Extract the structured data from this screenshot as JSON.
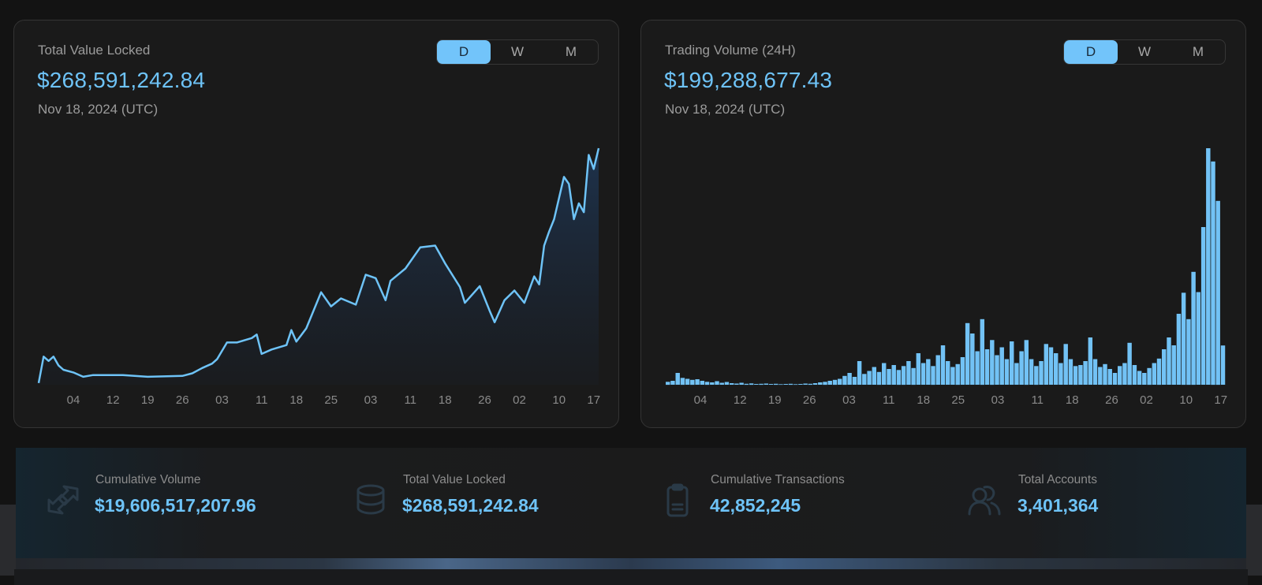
{
  "tvl_card": {
    "title": "Total Value Locked",
    "value": "$268,591,242.84",
    "date": "Nov 18, 2024 (UTC)",
    "toggle": [
      {
        "label": "D",
        "active": true
      },
      {
        "label": "W",
        "active": false
      },
      {
        "label": "M",
        "active": false
      }
    ]
  },
  "volume_card": {
    "title": "Trading Volume (24H)",
    "value": "$199,288,677.43",
    "date": "Nov 18, 2024 (UTC)",
    "toggle": [
      {
        "label": "D",
        "active": true
      },
      {
        "label": "W",
        "active": false
      },
      {
        "label": "M",
        "active": false
      }
    ]
  },
  "stats": [
    {
      "label": "Cumulative Volume",
      "value": "$19,606,517,207.96",
      "icon": "exchange-arrows-icon"
    },
    {
      "label": "Total Value Locked",
      "value": "$268,591,242.84",
      "icon": "coin-stack-icon"
    },
    {
      "label": "Cumulative Transactions",
      "value": "42,852,245",
      "icon": "clipboard-icon"
    },
    {
      "label": "Total Accounts",
      "value": "3,401,364",
      "icon": "users-icon"
    }
  ],
  "colors": {
    "accent": "#6ec3f7",
    "card_bg": "#1a1a1a",
    "text_muted": "#9b9b9b"
  },
  "chart_data": [
    {
      "type": "area",
      "title": "Total Value Locked",
      "unit": "USD millions (estimated, no y-axis shown)",
      "grid": false,
      "x_ticks": [
        {
          "date": "2024-08-04",
          "label": "04"
        },
        {
          "date": "2024-08-12",
          "label": "12"
        },
        {
          "date": "2024-08-19",
          "label": "19"
        },
        {
          "date": "2024-08-26",
          "label": "26"
        },
        {
          "date": "2024-09-03",
          "label": "03"
        },
        {
          "date": "2024-09-11",
          "label": "11"
        },
        {
          "date": "2024-09-18",
          "label": "18"
        },
        {
          "date": "2024-09-25",
          "label": "25"
        },
        {
          "date": "2024-10-03",
          "label": "03"
        },
        {
          "date": "2024-10-11",
          "label": "11"
        },
        {
          "date": "2024-10-18",
          "label": "18"
        },
        {
          "date": "2024-10-26",
          "label": "26"
        },
        {
          "date": "2024-11-02",
          "label": "02"
        },
        {
          "date": "2024-11-10",
          "label": "10"
        },
        {
          "date": "2024-11-17",
          "label": "17"
        }
      ],
      "xlim": [
        "2024-07-28",
        "2024-11-18"
      ],
      "ylim": [
        0,
        268.59
      ],
      "points": [
        [
          "2024-07-28",
          2
        ],
        [
          "2024-07-29",
          32
        ],
        [
          "2024-07-30",
          27
        ],
        [
          "2024-07-31",
          32
        ],
        [
          "2024-08-01",
          22
        ],
        [
          "2024-08-02",
          17
        ],
        [
          "2024-08-04",
          14
        ],
        [
          "2024-08-06",
          9
        ],
        [
          "2024-08-08",
          11
        ],
        [
          "2024-08-14",
          11
        ],
        [
          "2024-08-19",
          9
        ],
        [
          "2024-08-26",
          10
        ],
        [
          "2024-08-28",
          13
        ],
        [
          "2024-08-30",
          19
        ],
        [
          "2024-09-01",
          24
        ],
        [
          "2024-09-02",
          29
        ],
        [
          "2024-09-04",
          48
        ],
        [
          "2024-09-06",
          48
        ],
        [
          "2024-09-09",
          53
        ],
        [
          "2024-09-10",
          57
        ],
        [
          "2024-09-11",
          35
        ],
        [
          "2024-09-13",
          40
        ],
        [
          "2024-09-16",
          45
        ],
        [
          "2024-09-17",
          62
        ],
        [
          "2024-09-18",
          49
        ],
        [
          "2024-09-20",
          64
        ],
        [
          "2024-09-23",
          105
        ],
        [
          "2024-09-25",
          89
        ],
        [
          "2024-09-27",
          98
        ],
        [
          "2024-09-30",
          91
        ],
        [
          "2024-10-02",
          125
        ],
        [
          "2024-10-04",
          121
        ],
        [
          "2024-10-06",
          96
        ],
        [
          "2024-10-07",
          118
        ],
        [
          "2024-10-10",
          132
        ],
        [
          "2024-10-13",
          156
        ],
        [
          "2024-10-16",
          158
        ],
        [
          "2024-10-18",
          138
        ],
        [
          "2024-10-21",
          111
        ],
        [
          "2024-10-22",
          93
        ],
        [
          "2024-10-25",
          112
        ],
        [
          "2024-10-27",
          84
        ],
        [
          "2024-10-28",
          71
        ],
        [
          "2024-10-30",
          96
        ],
        [
          "2024-11-01",
          107
        ],
        [
          "2024-11-03",
          93
        ],
        [
          "2024-11-05",
          123
        ],
        [
          "2024-11-06",
          114
        ],
        [
          "2024-11-07",
          158
        ],
        [
          "2024-11-08",
          174
        ],
        [
          "2024-11-09",
          188
        ],
        [
          "2024-11-11",
          236
        ],
        [
          "2024-11-12",
          228
        ],
        [
          "2024-11-13",
          188
        ],
        [
          "2024-11-14",
          206
        ],
        [
          "2024-11-15",
          196
        ],
        [
          "2024-11-16",
          261
        ],
        [
          "2024-11-17",
          245
        ],
        [
          "2024-11-18",
          268.59
        ]
      ]
    },
    {
      "type": "bar",
      "title": "Trading Volume (24H)",
      "unit": "USD millions (estimated, no y-axis shown)",
      "grid": false,
      "x_ticks": [
        {
          "date": "2024-08-04",
          "label": "04"
        },
        {
          "date": "2024-08-12",
          "label": "12"
        },
        {
          "date": "2024-08-19",
          "label": "19"
        },
        {
          "date": "2024-08-26",
          "label": "26"
        },
        {
          "date": "2024-09-03",
          "label": "03"
        },
        {
          "date": "2024-09-11",
          "label": "11"
        },
        {
          "date": "2024-09-18",
          "label": "18"
        },
        {
          "date": "2024-09-25",
          "label": "25"
        },
        {
          "date": "2024-10-03",
          "label": "03"
        },
        {
          "date": "2024-10-11",
          "label": "11"
        },
        {
          "date": "2024-10-18",
          "label": "18"
        },
        {
          "date": "2024-10-26",
          "label": "26"
        },
        {
          "date": "2024-11-02",
          "label": "02"
        },
        {
          "date": "2024-11-10",
          "label": "10"
        },
        {
          "date": "2024-11-17",
          "label": "17"
        }
      ],
      "xlim": [
        "2024-07-28",
        "2024-11-18"
      ],
      "ylim": [
        0,
        1200
      ],
      "start_date": "2024-07-28",
      "daily_values": [
        15,
        20,
        60,
        35,
        30,
        25,
        28,
        20,
        15,
        12,
        18,
        10,
        14,
        8,
        6,
        10,
        5,
        7,
        4,
        5,
        6,
        4,
        5,
        3,
        4,
        5,
        3,
        4,
        6,
        5,
        8,
        12,
        15,
        20,
        25,
        30,
        45,
        60,
        40,
        120,
        55,
        70,
        90,
        65,
        110,
        80,
        100,
        75,
        95,
        120,
        85,
        160,
        110,
        130,
        95,
        150,
        200,
        120,
        90,
        105,
        140,
        313,
        260,
        170,
        333,
        180,
        227,
        150,
        190,
        130,
        220,
        110,
        170,
        227,
        130,
        95,
        120,
        207,
        190,
        160,
        110,
        207,
        130,
        95,
        100,
        120,
        240,
        130,
        90,
        105,
        80,
        60,
        95,
        110,
        213,
        100,
        70,
        60,
        85,
        110,
        133,
        180,
        240,
        200,
        360,
        467,
        333,
        573,
        470,
        800,
        1200,
        1133,
        933,
        199.29
      ]
    }
  ]
}
